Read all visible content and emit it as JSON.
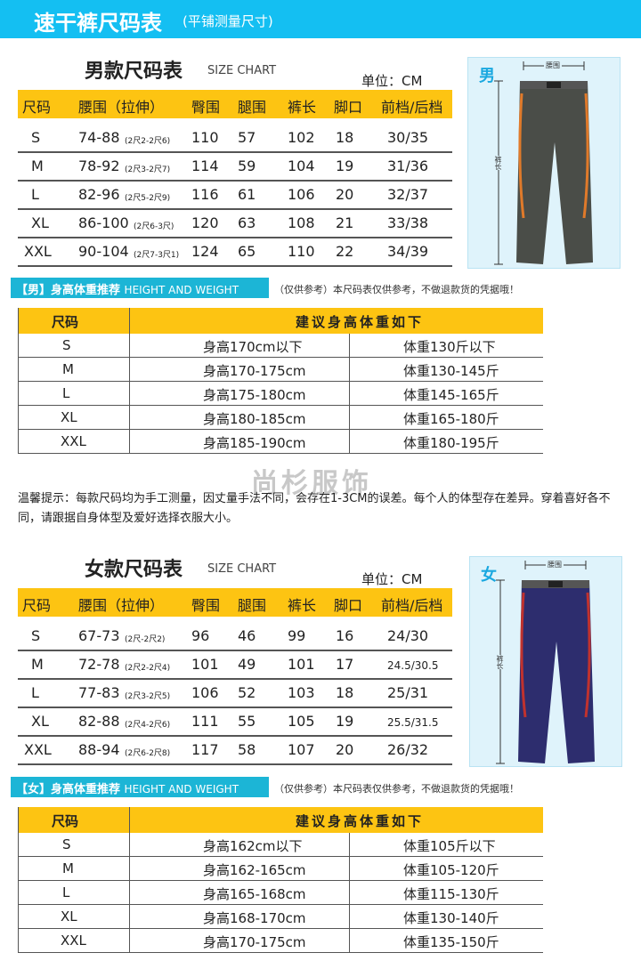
{
  "header": {
    "title": "速干裤尺码表",
    "subtitle": "(平铺测量尺寸)"
  },
  "watermark": "尚杉服饰",
  "tip": "温馨提示：每款尺码均为手工测量，因丈量手法不同，会存在1-3CM的误差。每个人的体型存在差异。穿着喜好各不同，请跟据自身体型及爱好选择衣服大小。",
  "colors": {
    "header_blue": "#14bff2",
    "table_yellow": "#fdc412",
    "badge_blue": "#1cb5d6"
  },
  "men": {
    "title": "男款尺码表",
    "subtitle": "SIZE CHART",
    "unit": "单位：CM",
    "columns": [
      "尺码",
      "腰围（拉伸）",
      "臀围",
      "腿围",
      "裤长",
      "脚口",
      "前档/后档"
    ],
    "rows": [
      [
        "S",
        "74-88",
        "(2尺2-2尺6)",
        "110",
        "57",
        "102",
        "18",
        "30/35"
      ],
      [
        "M",
        "78-92",
        "(2尺3-2尺7)",
        "114",
        "59",
        "104",
        "19",
        "31/36"
      ],
      [
        "L",
        "82-96",
        "(2尺5-2尺9)",
        "116",
        "61",
        "106",
        "20",
        "32/37"
      ],
      [
        "XL",
        "86-100",
        "(2尺6-3尺)",
        "120",
        "63",
        "108",
        "21",
        "33/38"
      ],
      [
        "XXL",
        "90-104",
        "(2尺7-3尺1)",
        "124",
        "65",
        "110",
        "22",
        "34/39"
      ]
    ],
    "image": {
      "gender_label": "男",
      "waist_label": "腰围",
      "length_label": "裤长",
      "pants_color": "#4a4d48",
      "accent_color": "#e07a2a"
    },
    "badge": {
      "label": "【男】身高体重推荐",
      "en": "HEIGHT AND WEIGHT"
    },
    "disclaimer": "（仅供参考）本尺码表仅供参考，不做退款货的凭据哦！",
    "hw_header": {
      "size": "尺码",
      "recommend": "建议身高体重如下"
    },
    "hw_rows": [
      [
        "S",
        "身高170cm以下",
        "体重130斤以下"
      ],
      [
        "M",
        "身高170-175cm",
        "体重130-145斤"
      ],
      [
        "L",
        "身高175-180cm",
        "体重145-165斤"
      ],
      [
        "XL",
        "身高180-185cm",
        "体重165-180斤"
      ],
      [
        "XXL",
        "身高185-190cm",
        "体重180-195斤"
      ]
    ]
  },
  "women": {
    "title": "女款尺码表",
    "subtitle": "SIZE CHART",
    "unit": "单位：CM",
    "columns": [
      "尺码",
      "腰围（拉伸）",
      "臀围",
      "腿围",
      "裤长",
      "脚口",
      "前档/后档"
    ],
    "rows": [
      [
        "S",
        "67-73",
        "(2尺-2尺2)",
        "96",
        "46",
        "99",
        "16",
        "24/30"
      ],
      [
        "M",
        "72-78",
        "(2尺2-2尺4)",
        "101",
        "49",
        "101",
        "17",
        "24.5/30.5"
      ],
      [
        "L",
        "77-83",
        "(2尺3-2尺5)",
        "106",
        "52",
        "103",
        "18",
        "25/31"
      ],
      [
        "XL",
        "82-88",
        "(2尺4-2尺6)",
        "111",
        "55",
        "105",
        "19",
        "25.5/31.5"
      ],
      [
        "XXL",
        "88-94",
        "(2尺6-2尺8)",
        "117",
        "58",
        "107",
        "20",
        "26/32"
      ]
    ],
    "image": {
      "gender_label": "女",
      "waist_label": "腰围",
      "length_label": "裤长",
      "pants_color": "#2d2d6e",
      "accent_color": "#c0322e"
    },
    "badge": {
      "label": "【女】身高体重推荐",
      "en": "HEIGHT AND WEIGHT"
    },
    "disclaimer": "（仅供参考）本尺码表仅供参考，不做退款货的凭据哦！",
    "hw_header": {
      "size": "尺码",
      "recommend": "建议身高体重如下"
    },
    "hw_rows": [
      [
        "S",
        "身高162cm以下",
        "体重105斤以下"
      ],
      [
        "M",
        "身高162-165cm",
        "体重105-120斤"
      ],
      [
        "L",
        "身高165-168cm",
        "体重115-130斤"
      ],
      [
        "XL",
        "身高168-170cm",
        "体重130-140斤"
      ],
      [
        "XXL",
        "身高170-175cm",
        "体重135-150斤"
      ]
    ]
  }
}
